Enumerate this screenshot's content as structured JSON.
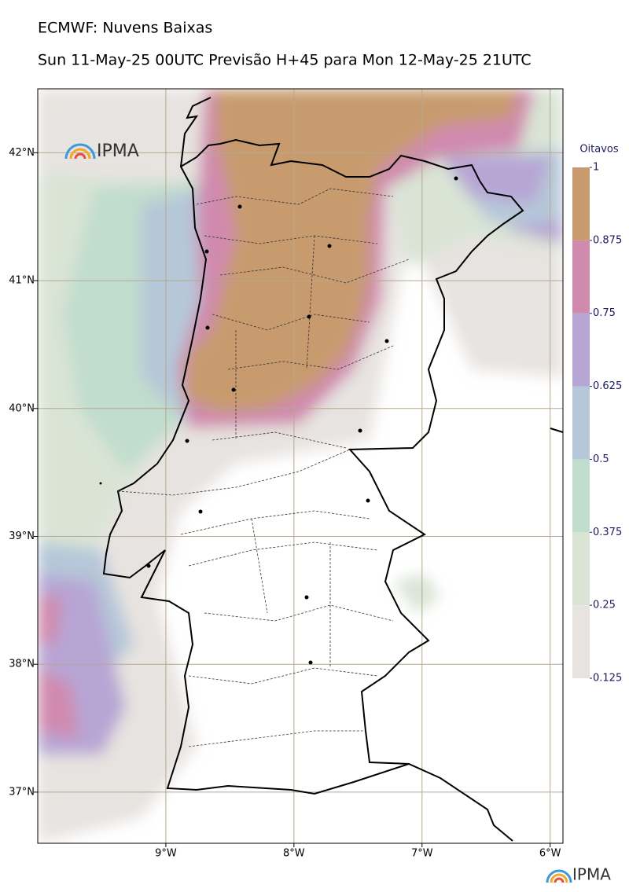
{
  "header": {
    "title": "ECMWF: Nuvens Baixas",
    "subtitle": "Sun 11-May-25 00UTC Previsão H+45 para Mon 12-May-25 21UTC"
  },
  "map": {
    "xlim": [
      -10,
      -5.9
    ],
    "ylim": [
      36.6,
      42.5
    ],
    "xticks": [
      {
        "value": -9,
        "label": "9°W"
      },
      {
        "value": -8,
        "label": "8°W"
      },
      {
        "value": -7,
        "label": "7°W"
      },
      {
        "value": -6,
        "label": "6°W"
      }
    ],
    "yticks": [
      {
        "value": 37,
        "label": "37°N"
      },
      {
        "value": 38,
        "label": "38°N"
      },
      {
        "value": 39,
        "label": "39°N"
      },
      {
        "value": 40,
        "label": "40°N"
      },
      {
        "value": 41,
        "label": "41°N"
      },
      {
        "value": 42,
        "label": "42°N"
      }
    ],
    "grid": true,
    "grid_color": "#b5a88f"
  },
  "colorbar": {
    "title": "Oitavos",
    "ticks": [
      0.125,
      0.25,
      0.375,
      0.5,
      0.625,
      0.75,
      0.875,
      1
    ],
    "colors": [
      "#e7e3e0",
      "#d9e4d5",
      "#c1ddcd",
      "#b5c7d9",
      "#b7a5d4",
      "#d08aae",
      "#c89b6e"
    ]
  },
  "logos": [
    "IPMA",
    "IPMA"
  ]
}
